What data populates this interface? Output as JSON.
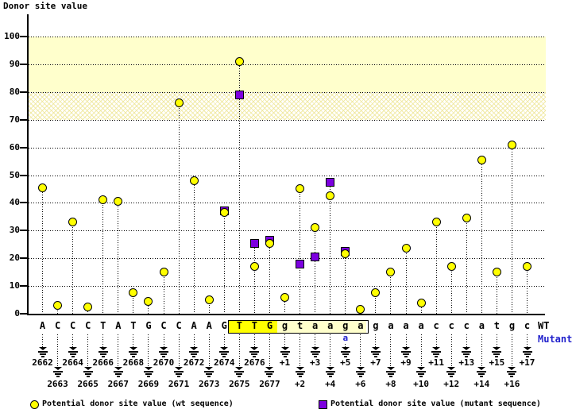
{
  "title": "Donor site value",
  "wt_label": "WT",
  "mutant_label": "Mutant",
  "legend": {
    "wt": "Potential donor site value (wt sequence)",
    "mutant": "Potential donor site value (mutant sequence)"
  },
  "colors": {
    "wt_marker": "#ffff00",
    "mutant_marker": "#7d00e0",
    "band_solid": "#ffffcc",
    "mutant_text_blue": "#2222cc",
    "highlight_yellow": "#ffff00",
    "highlight_cream": "#ffffcc"
  },
  "chart_data": {
    "type": "scatter",
    "title": "Donor site value",
    "ylabel": "Donor site value",
    "ylim": [
      0,
      110
    ],
    "yticks": [
      0,
      10,
      20,
      30,
      40,
      50,
      60,
      70,
      80,
      90,
      100
    ],
    "grid": "dotted-horizontal",
    "legend_position": "bottom",
    "bands": [
      {
        "from": 80,
        "to": 100,
        "style": "solid"
      },
      {
        "from": 70,
        "to": 80,
        "style": "hatch"
      }
    ],
    "highlight_box": {
      "from_pos": "2675",
      "to_pos": "+6",
      "uppercase_part": "TTG",
      "lowercase_part": "gtaaga"
    },
    "mutation": {
      "pos": "+5",
      "wt_base": "g",
      "mutant_base": "a"
    },
    "series_names": [
      "wt",
      "mutant"
    ],
    "points": [
      {
        "pos": "2662",
        "base": "A",
        "wt": 45.5,
        "mut": null
      },
      {
        "pos": "2663",
        "base": "C",
        "wt": 3,
        "mut": null
      },
      {
        "pos": "2664",
        "base": "C",
        "wt": 33,
        "mut": null
      },
      {
        "pos": "2665",
        "base": "C",
        "wt": 2.5,
        "mut": null
      },
      {
        "pos": "2666",
        "base": "T",
        "wt": 41,
        "mut": null
      },
      {
        "pos": "2667",
        "base": "A",
        "wt": 40.5,
        "mut": null
      },
      {
        "pos": "2668",
        "base": "T",
        "wt": 7.5,
        "mut": null
      },
      {
        "pos": "2669",
        "base": "G",
        "wt": 4.5,
        "mut": null
      },
      {
        "pos": "2670",
        "base": "C",
        "wt": 15,
        "mut": null
      },
      {
        "pos": "2671",
        "base": "C",
        "wt": 76,
        "mut": null
      },
      {
        "pos": "2672",
        "base": "A",
        "wt": 48,
        "mut": null
      },
      {
        "pos": "2673",
        "base": "A",
        "wt": 5,
        "mut": null
      },
      {
        "pos": "2674",
        "base": "G",
        "wt": 36.5,
        "mut": 37
      },
      {
        "pos": "2675",
        "base": "T",
        "wt": 91,
        "mut": 79
      },
      {
        "pos": "2676",
        "base": "T",
        "wt": 17,
        "mut": 25.5
      },
      {
        "pos": "2677",
        "base": "G",
        "wt": 25.5,
        "mut": 26.5
      },
      {
        "pos": "+1",
        "base": "g",
        "wt": 6,
        "mut": null
      },
      {
        "pos": "+2",
        "base": "t",
        "wt": 45,
        "mut": 18
      },
      {
        "pos": "+3",
        "base": "a",
        "wt": 31,
        "mut": 20.5
      },
      {
        "pos": "+4",
        "base": "a",
        "wt": 42.5,
        "mut": 47.5
      },
      {
        "pos": "+5",
        "base": "g",
        "wt": 21.5,
        "mut": 22.5
      },
      {
        "pos": "+6",
        "base": "a",
        "wt": 1.5,
        "mut": null
      },
      {
        "pos": "+7",
        "base": "g",
        "wt": 7.5,
        "mut": null
      },
      {
        "pos": "+8",
        "base": "a",
        "wt": 15,
        "mut": null
      },
      {
        "pos": "+9",
        "base": "a",
        "wt": 23.5,
        "mut": null
      },
      {
        "pos": "+10",
        "base": "a",
        "wt": 4,
        "mut": null
      },
      {
        "pos": "+11",
        "base": "c",
        "wt": 33,
        "mut": null
      },
      {
        "pos": "+12",
        "base": "c",
        "wt": 17,
        "mut": null
      },
      {
        "pos": "+13",
        "base": "c",
        "wt": 34.5,
        "mut": null
      },
      {
        "pos": "+14",
        "base": "a",
        "wt": 55.5,
        "mut": null
      },
      {
        "pos": "+15",
        "base": "t",
        "wt": 15,
        "mut": null
      },
      {
        "pos": "+16",
        "base": "g",
        "wt": 61,
        "mut": null
      },
      {
        "pos": "+17",
        "base": "c",
        "wt": 17,
        "mut": null
      }
    ]
  }
}
